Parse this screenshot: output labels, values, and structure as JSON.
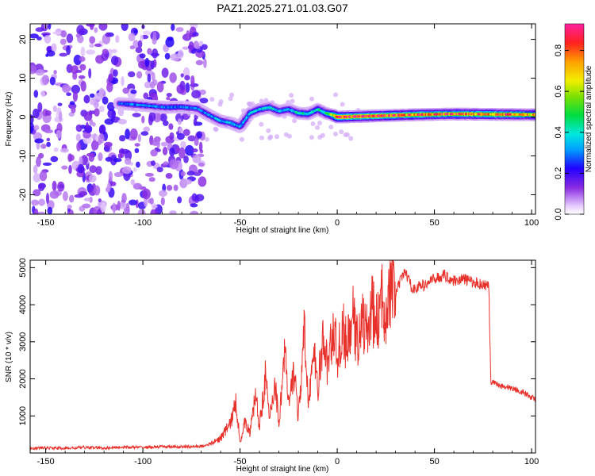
{
  "figure": {
    "title": "PAZ1.2025.271.01.03.G07"
  },
  "chart_data": [
    {
      "type": "heatmap",
      "name": "spectrogram",
      "xlabel": "Height of straight line (km)",
      "ylabel": "Frequency (Hz)",
      "xlim": [
        -158,
        102
      ],
      "ylim": [
        -25,
        24
      ],
      "xticks": [
        -150,
        -100,
        -50,
        0,
        50,
        100
      ],
      "xtick_labels": [
        "-150",
        "-100",
        "-50",
        "0",
        "50",
        "100"
      ],
      "yticks": [
        -20,
        -10,
        0,
        10,
        20
      ],
      "ytick_labels": [
        "-20",
        "-10",
        "0",
        "10",
        "20"
      ],
      "ridge": {
        "description": "dominant frequency trace vs height",
        "x": [
          -112,
          -104,
          -95,
          -88,
          -80,
          -72,
          -66,
          -60,
          -55,
          -50,
          -45,
          -40,
          -35,
          -30,
          -25,
          -20,
          -15,
          -10,
          -6,
          -2,
          0,
          20,
          40,
          60,
          80,
          102
        ],
        "y": [
          3.5,
          3.2,
          2.8,
          2.5,
          2.6,
          2.2,
          0.5,
          -1.0,
          -1.5,
          -2.5,
          1.0,
          2.0,
          2.5,
          1.5,
          2.0,
          1.0,
          0.8,
          2.0,
          1.0,
          0.5,
          0.0,
          0.3,
          0.6,
          0.8,
          0.7,
          0.6
        ],
        "amplitude": [
          0.25,
          0.3,
          0.3,
          0.3,
          0.3,
          0.28,
          0.3,
          0.35,
          0.35,
          0.3,
          0.35,
          0.35,
          0.4,
          0.35,
          0.35,
          0.4,
          0.4,
          0.4,
          0.45,
          0.6,
          0.9,
          0.85,
          0.8,
          0.8,
          0.8,
          0.7
        ]
      },
      "noise_region_x": [
        -158,
        -68
      ],
      "colorbar": {
        "label": "Normalized spectral amplitude",
        "range": [
          0,
          0.93
        ],
        "ticks": [
          0.0,
          0.2,
          0.4,
          0.6,
          0.8
        ],
        "tick_labels": [
          "0.0",
          "0.2",
          "0.4",
          "0.6",
          "0.8"
        ]
      }
    },
    {
      "type": "line",
      "name": "snr",
      "xlabel": "Height of straight line (km)",
      "ylabel": "SNR (10 * v/v)",
      "xlim": [
        -158,
        102
      ],
      "ylim": [
        0,
        5200
      ],
      "xticks": [
        -150,
        -100,
        -50,
        0,
        50,
        100
      ],
      "xtick_labels": [
        "-150",
        "-100",
        "-50",
        "0",
        "50",
        "100"
      ],
      "yticks": [
        1000,
        2000,
        3000,
        4000,
        5000
      ],
      "ytick_labels": [
        "1000",
        "2000",
        "3000",
        "4000",
        "5000"
      ],
      "series": [
        {
          "name": "SNR",
          "color": "#e8302a",
          "x": [
            -158,
            -150,
            -140,
            -130,
            -120,
            -110,
            -100,
            -90,
            -80,
            -70,
            -65,
            -60,
            -55,
            -52,
            -50,
            -47,
            -45,
            -42,
            -40,
            -37,
            -35,
            -32,
            -30,
            -27,
            -25,
            -22,
            -20,
            -17,
            -15,
            -12,
            -10,
            -7,
            -5,
            -2,
            0,
            3,
            5,
            8,
            10,
            13,
            15,
            18,
            20,
            23,
            25,
            28,
            30,
            33,
            35,
            38,
            40,
            43,
            45,
            48,
            50,
            53,
            55,
            58,
            60,
            65,
            70,
            75,
            78,
            79,
            80,
            85,
            90,
            95,
            100,
            102
          ],
          "y": [
            130,
            140,
            125,
            150,
            135,
            160,
            150,
            170,
            165,
            180,
            250,
            400,
            800,
            1350,
            300,
            900,
            500,
            1600,
            700,
            2100,
            900,
            1900,
            800,
            2800,
            1200,
            2300,
            900,
            3200,
            1500,
            2600,
            1800,
            3100,
            2300,
            3400,
            2600,
            3300,
            2800,
            3700,
            3000,
            3600,
            3200,
            3900,
            3400,
            4100,
            3900,
            4400,
            4300,
            4700,
            4900,
            4500,
            4400,
            4550,
            4500,
            4650,
            4700,
            4750,
            4800,
            4700,
            4650,
            4700,
            4600,
            4550,
            4500,
            1850,
            1900,
            1800,
            1750,
            1650,
            1500,
            1450
          ]
        }
      ]
    }
  ]
}
